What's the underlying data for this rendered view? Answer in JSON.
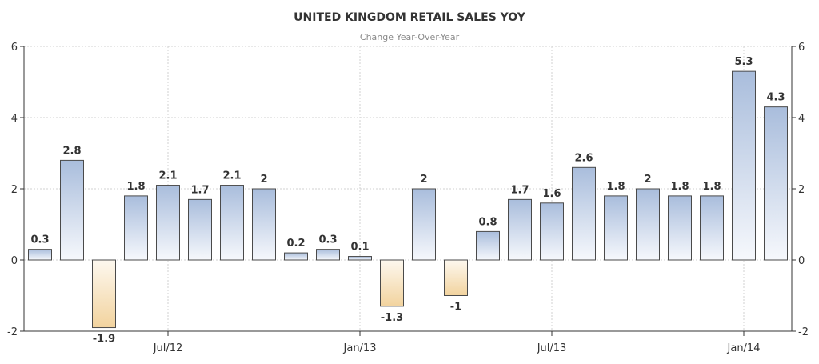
{
  "chart_data": {
    "type": "bar",
    "title": "UNITED KINGDOM RETAIL SALES YOY",
    "subtitle": "Change Year-Over-Year",
    "xlabel": "",
    "ylabel": "",
    "ylim": [
      -2,
      6
    ],
    "yticks": [
      -2,
      0,
      2,
      4,
      6
    ],
    "right_axis": true,
    "grid": true,
    "x_tick_labels": [
      {
        "label": "Jul/12",
        "index": 4.5
      },
      {
        "label": "Jan/13",
        "index": 10.5
      },
      {
        "label": "Jul/13",
        "index": 16.5
      },
      {
        "label": "Jan/14",
        "index": 22.5
      }
    ],
    "values": [
      0.3,
      2.8,
      -1.9,
      1.8,
      2.1,
      1.7,
      2.1,
      2,
      0.2,
      0.3,
      0.1,
      -1.3,
      2,
      -1,
      0.8,
      1.7,
      1.6,
      2.6,
      1.8,
      2,
      1.8,
      1.8,
      5.3,
      4.3
    ],
    "labels": [
      "0.3",
      "2.8",
      "-1.9",
      "1.8",
      "2.1",
      "1.7",
      "2.1",
      "2",
      "0.2",
      "0.3",
      "0.1",
      "-1.3",
      "2",
      "-1",
      "0.8",
      "1.7",
      "1.6",
      "2.6",
      "1.8",
      "2",
      "1.8",
      "1.8",
      "5.3",
      "4.3"
    ],
    "colors": {
      "positive_top": "#a9bddc",
      "positive_bottom": "#f6f8fc",
      "negative_top": "#fdf8ef",
      "negative_bottom": "#f2d39e",
      "bar_stroke": "#4a4a4a",
      "grid": "#d0d0d0",
      "axis": "#333333"
    }
  }
}
